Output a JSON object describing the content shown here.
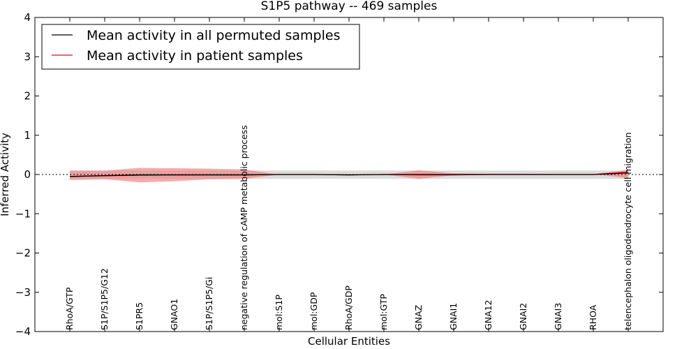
{
  "chart_data": {
    "type": "line",
    "title": "S1P5 pathway -- 469 samples",
    "xlabel": "Cellular Entities",
    "ylabel": "Inferred Activity",
    "ylim": [
      -4,
      4
    ],
    "yticks": [
      -4,
      -3,
      -2,
      -1,
      0,
      1,
      2,
      3,
      4
    ],
    "ytick_labels": [
      "−4",
      "−3",
      "−2",
      "−1",
      "0",
      "1",
      "2",
      "3",
      "4"
    ],
    "categories": [
      "RhoA/GTP",
      "S1P/S1P5/G12",
      "S1PR5",
      "GNAO1",
      "S1P/S1P5/Gi",
      "negative regulation of cAMP metabolic process",
      "mol:S1P",
      "mol:GDP",
      "RhoA/GDP",
      "mol:GTP",
      "GNAZ",
      "GNAI1",
      "GNA12",
      "GNAI2",
      "GNAI3",
      "RHOA",
      "telencephalon oligodendrocyte cell migration"
    ],
    "legend_position": "top-left",
    "series": [
      {
        "name": "Mean activity in all permuted samples",
        "color": "#000000",
        "values": [
          -0.05,
          -0.03,
          -0.01,
          -0.01,
          -0.01,
          -0.01,
          0.0,
          0.0,
          -0.01,
          0.0,
          0.0,
          0.0,
          0.0,
          0.0,
          0.0,
          0.0,
          0.04
        ],
        "band_lower": [
          -0.11,
          -0.11,
          -0.11,
          -0.11,
          -0.11,
          -0.11,
          -0.11,
          -0.11,
          -0.11,
          -0.11,
          -0.11,
          -0.11,
          -0.11,
          -0.11,
          -0.11,
          -0.11,
          -0.11
        ],
        "band_upper": [
          0.1,
          0.1,
          0.1,
          0.1,
          0.1,
          0.1,
          0.1,
          0.1,
          0.1,
          0.1,
          0.1,
          0.1,
          0.1,
          0.1,
          0.1,
          0.1,
          0.1
        ],
        "band_color": "#bfbfbf"
      },
      {
        "name": "Mean activity in patient samples",
        "color": "#ff0000",
        "values": [
          -0.05,
          -0.03,
          -0.02,
          -0.01,
          -0.01,
          -0.01,
          0.0,
          0.0,
          -0.01,
          0.0,
          -0.01,
          -0.01,
          0.0,
          0.0,
          0.0,
          0.0,
          0.06
        ],
        "band_lower": [
          -0.14,
          -0.12,
          -0.2,
          -0.17,
          -0.12,
          -0.11,
          0.0,
          0.0,
          0.0,
          0.0,
          -0.11,
          -0.02,
          -0.01,
          0.0,
          0.0,
          0.0,
          -0.09
        ],
        "band_upper": [
          0.1,
          0.1,
          0.17,
          0.16,
          0.15,
          0.13,
          0.0,
          0.0,
          0.0,
          0.0,
          0.11,
          0.03,
          0.02,
          0.02,
          0.01,
          0.01,
          0.12
        ],
        "band_color": "#f08080"
      }
    ],
    "reference_line": {
      "y": 0,
      "style": "dotted",
      "color": "#000000"
    }
  }
}
